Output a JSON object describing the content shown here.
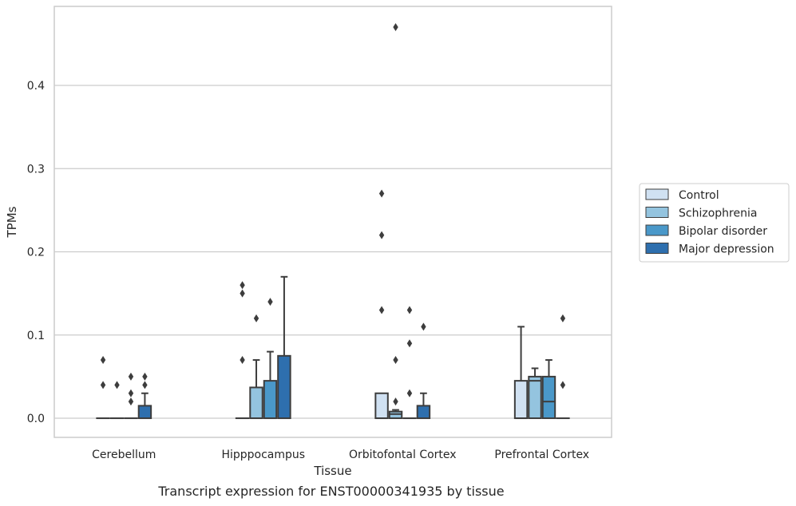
{
  "chart_data": {
    "type": "box",
    "xlabel": "Tissue",
    "ylabel": "TPMs",
    "caption": "Transcript expression for ENST00000341935 by tissue",
    "ylim": [
      -0.023,
      0.495
    ],
    "yticks": [
      0.0,
      0.1,
      0.2,
      0.3,
      0.4
    ],
    "ytick_labels": [
      "0.0",
      "0.1",
      "0.2",
      "0.3",
      "0.4"
    ],
    "grid": "horizontal",
    "legend_position": "right",
    "categories": [
      "Cerebellum",
      "Hipppocampus",
      "Orbitofontal Cortex",
      "Prefrontal Cortex"
    ],
    "series": [
      {
        "name": "Control",
        "color": "#d0e1f2",
        "boxes": [
          {
            "q1": 0.0,
            "median": 0.0,
            "q3": 0.0,
            "whisker_low": 0.0,
            "whisker_high": 0.0,
            "outliers": [
              0.04,
              0.07
            ]
          },
          {
            "q1": 0.0,
            "median": 0.0,
            "q3": 0.0,
            "whisker_low": 0.0,
            "whisker_high": 0.0,
            "outliers": [
              0.07,
              0.15,
              0.16
            ]
          },
          {
            "q1": 0.0,
            "median": 0.0,
            "q3": 0.03,
            "whisker_low": 0.0,
            "whisker_high": 0.03,
            "outliers": [
              0.13,
              0.22,
              0.27
            ]
          },
          {
            "q1": 0.0,
            "median": 0.0,
            "q3": 0.045,
            "whisker_low": 0.0,
            "whisker_high": 0.11,
            "outliers": []
          }
        ]
      },
      {
        "name": "Schizophrenia",
        "color": "#94c4df",
        "boxes": [
          {
            "q1": 0.0,
            "median": 0.0,
            "q3": 0.0,
            "whisker_low": 0.0,
            "whisker_high": 0.0,
            "outliers": [
              0.04
            ]
          },
          {
            "q1": 0.0,
            "median": 0.0,
            "q3": 0.037,
            "whisker_low": 0.0,
            "whisker_high": 0.07,
            "outliers": [
              0.12
            ]
          },
          {
            "q1": 0.0,
            "median": 0.005,
            "q3": 0.008,
            "whisker_low": 0.0,
            "whisker_high": 0.01,
            "outliers": [
              0.02,
              0.07,
              0.47
            ]
          },
          {
            "q1": 0.0,
            "median": 0.045,
            "q3": 0.05,
            "whisker_low": 0.0,
            "whisker_high": 0.06,
            "outliers": []
          }
        ]
      },
      {
        "name": "Bipolar disorder",
        "color": "#4a98c9",
        "boxes": [
          {
            "q1": 0.0,
            "median": 0.0,
            "q3": 0.0,
            "whisker_low": 0.0,
            "whisker_high": 0.0,
            "outliers": [
              0.02,
              0.03,
              0.05
            ]
          },
          {
            "q1": 0.0,
            "median": 0.0,
            "q3": 0.045,
            "whisker_low": 0.0,
            "whisker_high": 0.08,
            "outliers": [
              0.14
            ]
          },
          {
            "q1": 0.0,
            "median": 0.0,
            "q3": 0.0,
            "whisker_low": 0.0,
            "whisker_high": 0.0,
            "outliers": [
              0.03,
              0.09,
              0.13
            ]
          },
          {
            "q1": 0.0,
            "median": 0.02,
            "q3": 0.05,
            "whisker_low": 0.0,
            "whisker_high": 0.07,
            "outliers": []
          }
        ]
      },
      {
        "name": "Major depression",
        "color": "#2e6fae",
        "boxes": [
          {
            "q1": 0.0,
            "median": 0.0,
            "q3": 0.015,
            "whisker_low": 0.0,
            "whisker_high": 0.03,
            "outliers": [
              0.04,
              0.05
            ]
          },
          {
            "q1": 0.0,
            "median": 0.0,
            "q3": 0.075,
            "whisker_low": 0.0,
            "whisker_high": 0.17,
            "outliers": []
          },
          {
            "q1": 0.0,
            "median": 0.0,
            "q3": 0.015,
            "whisker_low": 0.0,
            "whisker_high": 0.03,
            "outliers": [
              0.11
            ]
          },
          {
            "q1": 0.0,
            "median": 0.0,
            "q3": 0.0,
            "whisker_low": 0.0,
            "whisker_high": 0.0,
            "outliers": [
              0.04,
              0.12
            ]
          }
        ]
      }
    ]
  }
}
